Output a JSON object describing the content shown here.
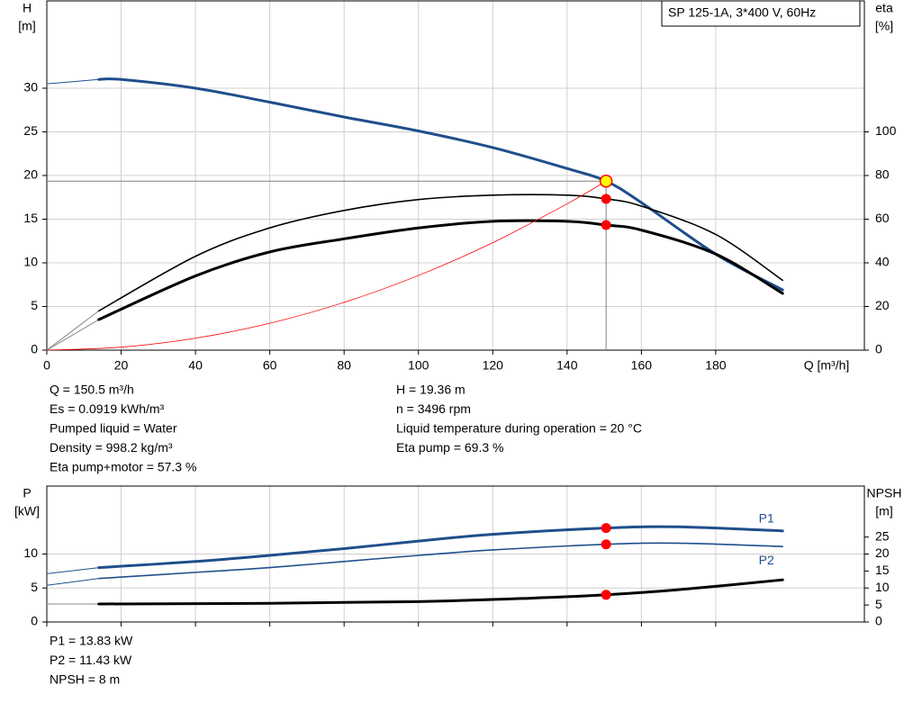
{
  "chart_data": [
    {
      "type": "line",
      "title": "SP 125-1A, 3*400 V, 60Hz",
      "y_label": "H",
      "y_unit": "[m]",
      "y2_label": "eta",
      "y2_unit": "[%]",
      "x_label": "Q [m³/h]",
      "xlim": [
        0,
        220
      ],
      "xticks": [
        0,
        20,
        40,
        60,
        80,
        100,
        120,
        140,
        160,
        180
      ],
      "ylim": [
        0,
        40
      ],
      "yticks": [
        0,
        5,
        10,
        15,
        20,
        25,
        30
      ],
      "y2lim": [
        0,
        160
      ],
      "y2ticks": [
        0,
        20,
        40,
        60,
        80,
        100
      ],
      "grid": true,
      "series": [
        {
          "x": [
            0,
            14
          ],
          "values": [
            30.5,
            31
          ],
          "color": "#1f4e8c",
          "width": 1
        },
        {
          "x": [
            14,
            20,
            40,
            60,
            80,
            100,
            120,
            140,
            150.5,
            160,
            180,
            198
          ],
          "values": [
            31,
            31,
            30,
            28.4,
            26.7,
            25.1,
            23.2,
            20.8,
            19.36,
            16.9,
            11,
            6.9
          ],
          "color": "#1f4e8c",
          "width": 3
        },
        {
          "x": [
            0,
            14
          ],
          "values": [
            0,
            18
          ],
          "color": "#888888",
          "width": 1,
          "axis": "y2"
        },
        {
          "x": [
            14,
            40,
            60,
            80,
            100,
            120,
            140,
            150.5,
            160,
            180,
            198
          ],
          "values": [
            18,
            43,
            56,
            64,
            69,
            71,
            71,
            69.3,
            66,
            53,
            32
          ],
          "color": "#000000",
          "width": 1.6,
          "axis": "y2"
        },
        {
          "x": [
            0,
            14
          ],
          "values": [
            0,
            14
          ],
          "color": "#888888",
          "width": 1,
          "axis": "y2"
        },
        {
          "x": [
            14,
            40,
            60,
            80,
            100,
            120,
            140,
            150.5,
            160,
            180,
            198
          ],
          "values": [
            14,
            34,
            45,
            51,
            56,
            59,
            59,
            57.3,
            55,
            44,
            26
          ],
          "color": "#000000",
          "width": 3,
          "axis": "y2"
        },
        {
          "x": [
            0,
            20,
            40,
            60,
            80,
            100,
            120,
            140,
            150.5
          ],
          "values": [
            0,
            0.34,
            1.37,
            3.08,
            5.47,
            8.55,
            12.31,
            16.76,
            19.36
          ],
          "color": "#ff0000",
          "width": 0.8
        }
      ],
      "markers": [
        {
          "x": 150.5,
          "y": 69.3,
          "axis": "y2",
          "color": "#ff0000"
        },
        {
          "x": 150.5,
          "y": 57.3,
          "axis": "y2",
          "color": "#ff0000"
        },
        {
          "x": 150.5,
          "y": 19.36,
          "color": "#ffff00",
          "reference": true
        }
      ],
      "info_left": [
        "Q = 150.5 m³/h",
        "Es = 0.0919 kWh/m³",
        "Pumped liquid = Water",
        "Density = 998.2 kg/m³",
        "Eta pump+motor = 57.3 %"
      ],
      "info_right": [
        "H = 19.36 m",
        "n = 3496 rpm",
        "Liquid temperature during operation = 20 °C",
        "Eta pump = 69.3 %"
      ]
    },
    {
      "type": "line",
      "y_label": "P",
      "y_unit": "[kW]",
      "y2_label": "NPSH",
      "y2_unit": "[m]",
      "xlim": [
        0,
        220
      ],
      "ylim": [
        0,
        20
      ],
      "yticks": [
        0,
        5,
        10
      ],
      "y2lim": [
        0,
        40
      ],
      "y2ticks": [
        0,
        5,
        10,
        15,
        20,
        25
      ],
      "grid": true,
      "series": [
        {
          "x": [
            0,
            14
          ],
          "values": [
            7.1,
            8.0
          ],
          "color": "#1f4e8c",
          "width": 1
        },
        {
          "name": "P1",
          "label_side": "above",
          "x": [
            14,
            40,
            60,
            80,
            100,
            120,
            150.5,
            170,
            198
          ],
          "values": [
            8.0,
            8.9,
            9.8,
            10.8,
            11.9,
            12.9,
            13.83,
            14.0,
            13.4
          ],
          "color": "#1f4e8c",
          "width": 3
        },
        {
          "x": [
            0,
            14
          ],
          "values": [
            5.4,
            6.4
          ],
          "color": "#1f4e8c",
          "width": 1
        },
        {
          "name": "P2",
          "label_side": "below",
          "x": [
            14,
            40,
            60,
            80,
            100,
            120,
            150.5,
            170,
            198
          ],
          "values": [
            6.4,
            7.3,
            8.0,
            8.9,
            9.8,
            10.6,
            11.43,
            11.6,
            11.1
          ],
          "color": "#1f4e8c",
          "width": 1.6
        },
        {
          "x": [
            0,
            14
          ],
          "values": [
            5.3,
            5.3
          ],
          "color": "#888888",
          "width": 1,
          "axis": "y2"
        },
        {
          "x": [
            14,
            60,
            100,
            130,
            150.5,
            170,
            198
          ],
          "values": [
            5.3,
            5.5,
            6,
            7,
            8,
            9.5,
            12.4
          ],
          "color": "#000000",
          "width": 3,
          "axis": "y2"
        }
      ],
      "markers": [
        {
          "x": 150.5,
          "y": 13.83,
          "color": "#ff0000"
        },
        {
          "x": 150.5,
          "y": 11.43,
          "color": "#ff0000"
        },
        {
          "x": 150.5,
          "y": 8,
          "axis": "y2",
          "color": "#ff0000"
        }
      ],
      "info_left": [
        "P1 = 13.83 kW",
        "P2 = 11.43 kW",
        "NPSH = 8 m"
      ]
    }
  ]
}
